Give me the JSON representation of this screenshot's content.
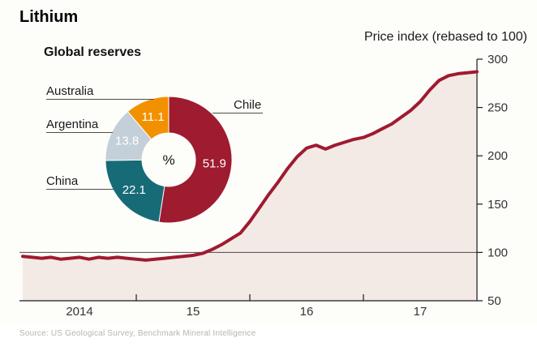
{
  "page": {
    "title": "Lithium",
    "source": "Source: US Geological Survey, Benchmark Mineral Intelligence"
  },
  "chart_data": [
    {
      "type": "pie",
      "subtype": "donut",
      "title": "Global reserves",
      "center_label": "%",
      "value_label_color": "#ffffff",
      "slices": [
        {
          "label": "Chile",
          "value": 51.9,
          "color": "#9e1b30"
        },
        {
          "label": "China",
          "value": 22.1,
          "color": "#166b77"
        },
        {
          "label": "Argentina",
          "value": 13.8,
          "color": "#c3cfd9"
        },
        {
          "label": "Australia",
          "value": 11.1,
          "color": "#f29100"
        }
      ]
    },
    {
      "type": "area",
      "title": "Price index (rebased to 100)",
      "x_domain": [
        2014,
        2018
      ],
      "x_start": 2014.0,
      "x_step": 0.0833333,
      "x_tick_labels": [
        "2014",
        "15",
        "16",
        "17"
      ],
      "x_tick_positions": [
        2014.5,
        2015.5,
        2016.5,
        2017.5
      ],
      "x_boundary_ticks": [
        2015,
        2016,
        2017
      ],
      "ylim": [
        50,
        300
      ],
      "yticks": [
        300,
        250,
        200,
        150,
        100,
        50
      ],
      "baseline": 100,
      "grid": "baseline-only",
      "legend": "none",
      "line_color": "#9e1b30",
      "fill_color": "#f4eae5",
      "values": [
        96,
        95,
        94,
        95,
        93,
        94,
        95,
        93,
        95,
        94,
        95,
        94,
        93,
        92,
        93,
        94,
        95,
        96,
        97,
        99,
        103,
        108,
        114,
        120,
        132,
        146,
        160,
        173,
        187,
        199,
        208,
        211,
        207,
        211,
        214,
        217,
        219,
        223,
        228,
        233,
        240,
        247,
        256,
        268,
        278,
        283,
        285,
        286,
        287
      ]
    }
  ]
}
